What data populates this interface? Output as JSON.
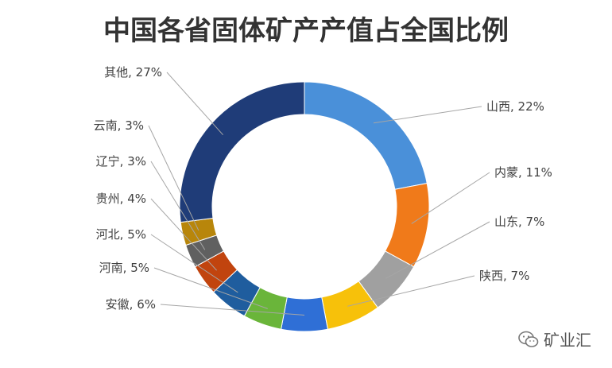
{
  "chart_data": {
    "type": "pie",
    "title": "中国各省固体矿产产值占全国比例",
    "slices": [
      {
        "name": "山西",
        "value": 22,
        "label": "山西, 22%",
        "color": "#4a90d9"
      },
      {
        "name": "内蒙",
        "value": 11,
        "label": "内蒙, 11%",
        "color": "#f07a1a"
      },
      {
        "name": "山东",
        "value": 7,
        "label": "山东, 7%",
        "color": "#a0a0a0"
      },
      {
        "name": "陕西",
        "value": 7,
        "label": "陕西, 7%",
        "color": "#f7c10a"
      },
      {
        "name": "安徽",
        "value": 6,
        "label": "安徽, 6%",
        "color": "#2f6fd6"
      },
      {
        "name": "河南",
        "value": 5,
        "label": "河南, 5%",
        "color": "#6ab53a"
      },
      {
        "name": "河北",
        "value": 5,
        "label": "河北, 5%",
        "color": "#1f5d9e"
      },
      {
        "name": "贵州",
        "value": 4,
        "label": "贵州, 4%",
        "color": "#c1440e"
      },
      {
        "name": "辽宁",
        "value": 3,
        "label": "辽宁, 3%",
        "color": "#606060"
      },
      {
        "name": "云南",
        "value": 3,
        "label": "云南, 3%",
        "color": "#b8860b"
      },
      {
        "name": "其他",
        "value": 27,
        "label": "其他, 27%",
        "color": "#1f3c78"
      }
    ]
  },
  "watermark": {
    "text": "矿业汇",
    "icon": "wechat-icon"
  }
}
